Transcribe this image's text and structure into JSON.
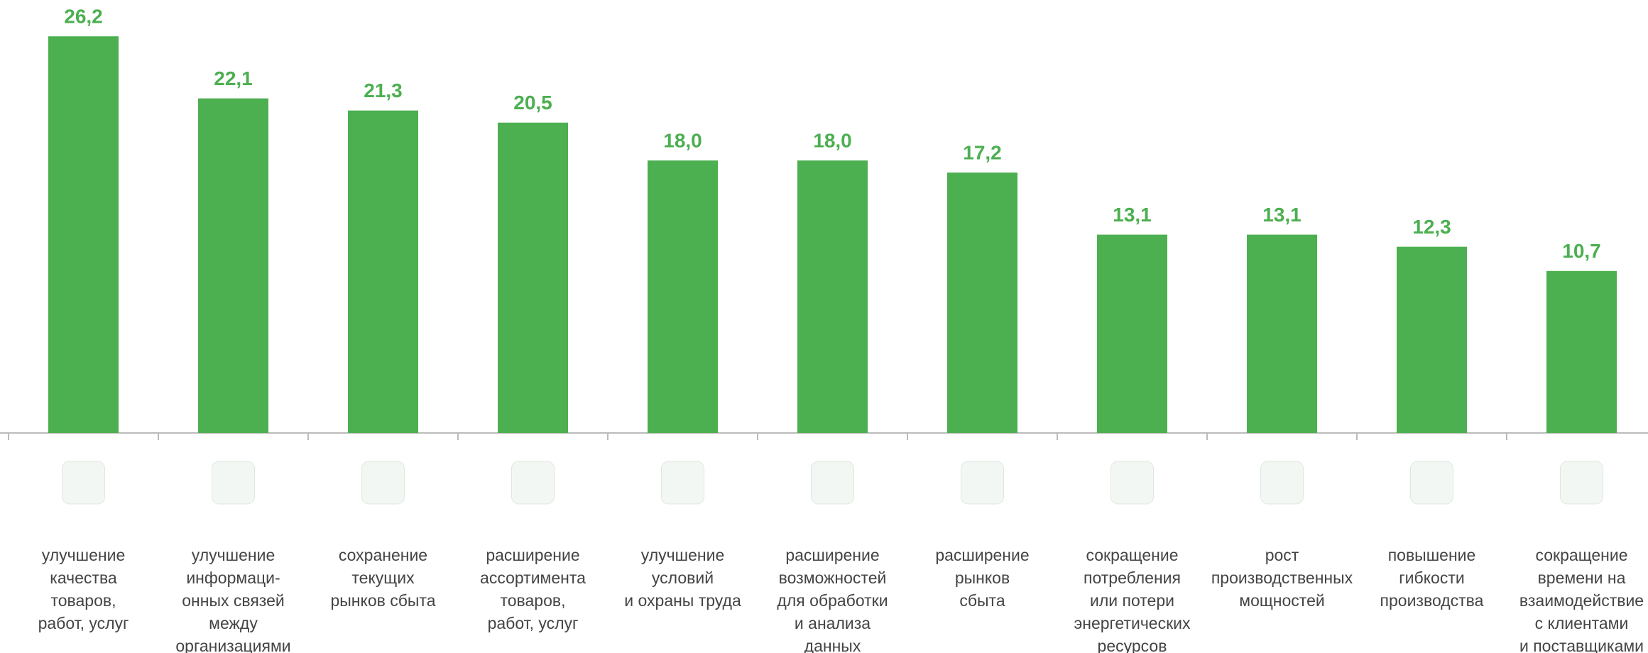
{
  "chart_data": {
    "type": "bar",
    "categories": [
      "улучшение\nкачества\nтоваров,\nработ, услуг",
      "улучшение\nинформаци-\nонных связей\nмежду\nорганизациями",
      "сохранение\nтекущих\nрынков сбыта",
      "расширение\nассортимента\nтоваров,\nработ, услуг",
      "улучшение\nусловий\nи охраны труда",
      "расширение\nвозможностей\nдля обработки\nи анализа\nданных",
      "расширение\nрынков\nсбыта",
      "сокращение\nпотребления\nили потери\nэнергетических\nресурсов",
      "рост\nпроизводственных\nмощностей",
      "повышение\nгибкости\nпроизводства",
      "сокращение\nвремени на\nвзаимодействие\nс клиентами\nи поставщиками"
    ],
    "values": [
      26.2,
      22.1,
      21.3,
      20.5,
      18.0,
      18.0,
      17.2,
      13.1,
      13.1,
      12.3,
      10.7
    ],
    "value_labels": [
      "26,2",
      "22,1",
      "21,3",
      "20,5",
      "18,0",
      "18,0",
      "17,2",
      "13,1",
      "13,1",
      "12,3",
      "10,7"
    ],
    "color": "#4caf50",
    "ylim": [
      0,
      28.6
    ]
  }
}
